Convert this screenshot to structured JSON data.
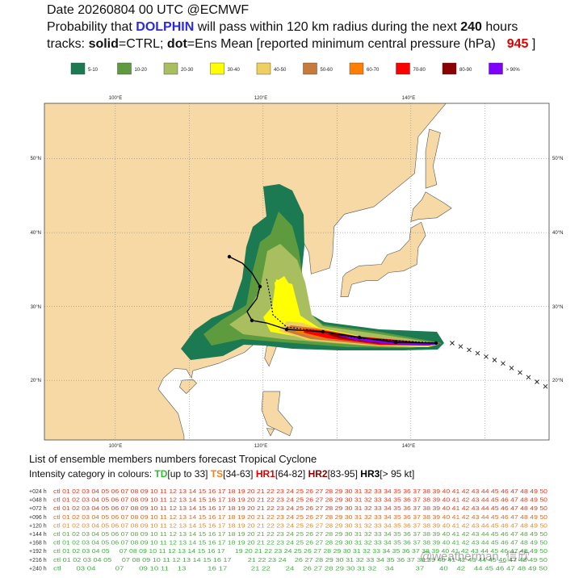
{
  "header": {
    "line1": "Date 20260804 00 UTC   @ECMWF",
    "line2": [
      "Probability that ",
      "DOLPHIN",
      " will pass within 120 km radius during the next ",
      "240",
      " hours"
    ],
    "line3": [
      "tracks: ",
      "solid",
      "=CTRL; ",
      "dot",
      "=Ens Mean [reported minimum central pressure (hPa)",
      "945",
      " ]"
    ]
  },
  "legend": [
    {
      "label": "5-10",
      "color": "#1b7a52"
    },
    {
      "label": "10-20",
      "color": "#5e9a3e"
    },
    {
      "label": "20-30",
      "color": "#a9bf5f"
    },
    {
      "label": "30-40",
      "color": "#ffff00"
    },
    {
      "label": "40-50",
      "color": "#efcf5f"
    },
    {
      "label": "50-60",
      "color": "#c77a3a"
    },
    {
      "label": "60-70",
      "color": "#ff8000"
    },
    {
      "label": "70-80",
      "color": "#ff0000"
    },
    {
      "label": "80-90",
      "color": "#8b0000"
    },
    {
      "label": "> 90%",
      "color": "#8000ff"
    }
  ],
  "map": {
    "lon_labels": [
      "100°E",
      "120°E",
      "140°E"
    ],
    "lat_labels": [
      "50°N",
      "40°N",
      "30°N",
      "20°N"
    ]
  },
  "footer": {
    "title": "List of ensemble members numbers forecast Tropical Cyclone",
    "intensity": [
      "Intensity category in colours: ",
      "TD",
      "[up to 33] ",
      "TS",
      "[34-63] ",
      "HR1",
      "[64-82] ",
      "HR2",
      "[83-95] ",
      "HR3",
      "[> 95 kt]"
    ],
    "rows": [
      {
        "label": "+024 h",
        "color": "#e03a20",
        "members": "ctl 01 02 03 04 05 06 07 08 09 10 11 12 13 14 15 16 17 18 19 20 21 22 23 24 25 26 27 28 29 30 31 32 33 34 35 36 37 38 39 40 41 42 43 44 45 46 47 48 49 50"
      },
      {
        "label": "+048 h",
        "color": "#e03a20",
        "members": "ctl 01 02 03 04 05 06 07 08 09 10 11 12 13 14 15 16 17 18 19 20 21 22 23 24 25 26 27 28 29 30 31 32 33 34 35 36 37 38 39 40 41 42 43 44 45 46 47 48 49 50"
      },
      {
        "label": "+072 h",
        "color": "#d84020",
        "members": "ctl 01 02 03 04 05 06 07 08 09 10 11 12 13 14 15 16 17 18 19 20 21 22 23 24 25 26 27 28 29 30 31 32 33 34 35 36 37 38 39 40 41 42 43 44 45 46 47 48 49 50"
      },
      {
        "label": "+096 h",
        "color": "#e06a20",
        "members": "ctl 01 02 03 04 05 06 07 08 09 10 11 12 13 14 15 16 17 18 19 20 21 22 23 24 25 26 27 28 29 30 31 32 33 34 35 36 37 38 39 40 41 42 43 44 45 46 47 48 49 50"
      },
      {
        "label": "+120 h",
        "color": "#e88a30",
        "members": "ctl 01 02 03 04 05 06 07 08 09 10 11 12 13 14 15 16 17 18 19 20 21 22 23 24 25 26 27 28 29 30 31 32 33 34 35 36 37 38 39 40 41 42 43 44 45 46 47 48 49 50"
      },
      {
        "label": "+144 h",
        "color": "#5aaa40",
        "members": "ctl 01 02 03 04 05 06 07 08 09 10 11 12 13 14 15 16 17 18 19 20 21 22 23 24 25 26 27 28 29 30 31 32 33 34 35 36 37 38 39 40 41 42 43 44 45 46 47 48 49 50"
      },
      {
        "label": "+168 h",
        "color": "#40b040",
        "members": "ctl 01 02 03 04 05 06 07 08 09 10 11 12 13 14 15 16 17 18 19 20 21 22 23 24 25 26 27 28 29 30 31 32 33 34 35 36 37 38 39 40 41 42 43 44 45 46 47 48 49 50"
      },
      {
        "label": "+192 h",
        "color": "#40b040",
        "members": "ctl 01 02 03 04 05     07 08 09 10 11 12 13 14 15 16 17     19 20 21 22 23 24 25 26 27 28 29 30 31 32 33 34 35 36 37 38 39 40 41 42 43 44 45 46 47 48 49 50"
      },
      {
        "label": "+216 h",
        "color": "#40b040",
        "members": "ctl 01 02 03 04 05     07 08 09 10 11 12 13 14 15 16 17        21 22 23 24    26 27 28 29 30 31 32 33 34 35 36 37 38 39 40 41 42 43 44 45 46 47 48 49 50"
      },
      {
        "label": "+240 h",
        "color": "#40b040",
        "members": "ctl       03 04         07       09 10 11    13          16 17           21 22       24    26 27 28 29 30 31 32    34          37       40    42    44 45 46 47 48 49 50"
      }
    ],
    "watermark": "@weatherman_信欣"
  }
}
